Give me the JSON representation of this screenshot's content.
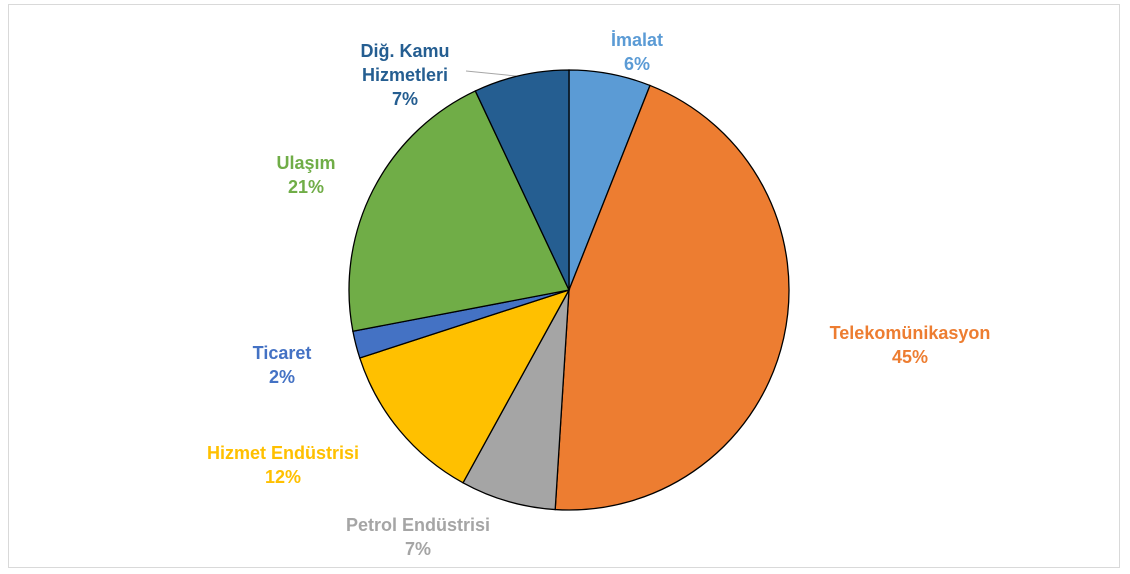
{
  "chart_data": {
    "type": "pie",
    "categories": [
      "İmalat",
      "Telekomünikasyon",
      "Petrol Endüstrisi",
      "Hizmet Endüstrisi",
      "Ticaret",
      "Ulaşım",
      "Diğ. Kamu Hizmetleri"
    ],
    "values": [
      6,
      45,
      7,
      12,
      2,
      21,
      7
    ],
    "value_labels": [
      "6%",
      "45%",
      "7%",
      "12%",
      "2%",
      "21%",
      "7%"
    ],
    "colors": [
      "#5b9bd5",
      "#ed7d31",
      "#a5a5a5",
      "#ffc000",
      "#4472c4",
      "#70ad47",
      "#255e91"
    ]
  }
}
